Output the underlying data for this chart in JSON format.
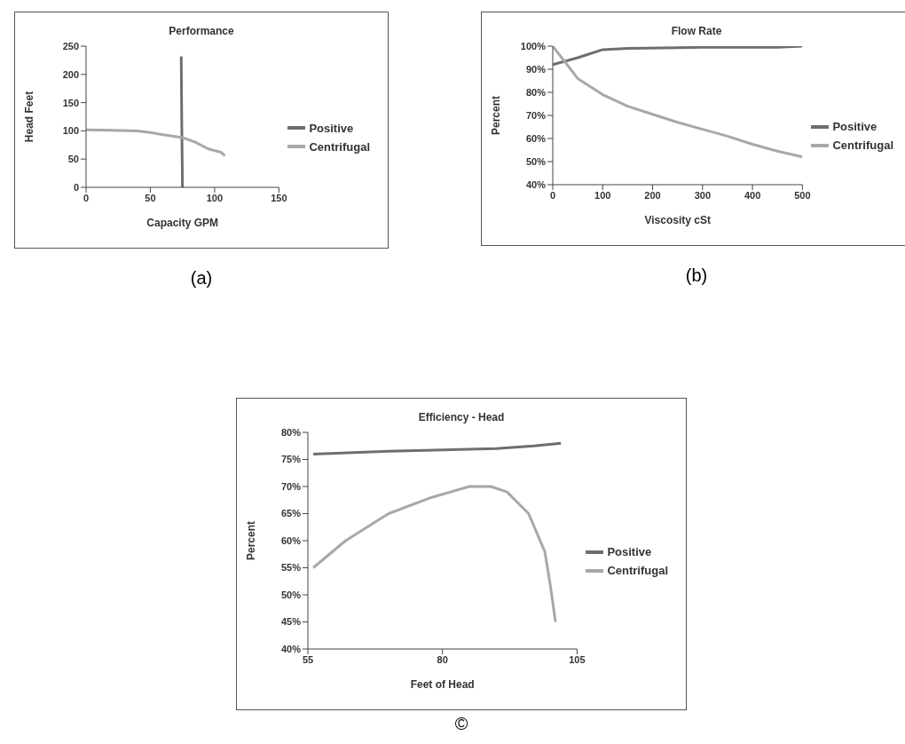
{
  "chart_data": [
    {
      "type": "line",
      "title": "Performance",
      "xlabel": "Capacity GPM",
      "ylabel": "Head Feet",
      "xlim": [
        0,
        150
      ],
      "xticks": [
        0,
        50,
        100,
        150
      ],
      "ylim": [
        0,
        250
      ],
      "yticks": [
        0,
        50,
        100,
        150,
        200,
        250
      ],
      "grid": false,
      "legend": "right",
      "marker": "none",
      "annotations": [
        "(a)"
      ],
      "series": [
        {
          "name": "Positive",
          "color": "#6e6e6e",
          "x": [
            74,
            74.5,
            75
          ],
          "values": [
            232,
            100,
            0
          ]
        },
        {
          "name": "Centrifugal",
          "color": "#a8a8a8",
          "x": [
            0,
            20,
            40,
            50,
            60,
            75,
            85,
            95,
            105,
            108
          ],
          "values": [
            102,
            101,
            100,
            97,
            93,
            88,
            80,
            68,
            62,
            56
          ]
        }
      ]
    },
    {
      "type": "line",
      "title": "Flow Rate",
      "xlabel": "Viscosity cSt",
      "ylabel": "Percent",
      "xlim": [
        0,
        500
      ],
      "xticks": [
        0,
        100,
        200,
        300,
        400,
        500
      ],
      "ylim": [
        40,
        100
      ],
      "yticks": [
        {
          "value": 40,
          "label": "40%"
        },
        {
          "value": 50,
          "label": "50%"
        },
        {
          "value": 60,
          "label": "60%"
        },
        {
          "value": 70,
          "label": "70%"
        },
        {
          "value": 80,
          "label": "80%"
        },
        {
          "value": 90,
          "label": "90%"
        },
        {
          "value": 100,
          "label": "100%"
        }
      ],
      "grid": false,
      "legend": "right",
      "marker": "none",
      "annotations": [
        "(b)"
      ],
      "series": [
        {
          "name": "Positive",
          "color": "#6e6e6e",
          "x": [
            0,
            50,
            100,
            150,
            300,
            450,
            500
          ],
          "values": [
            92,
            95,
            98.5,
            99,
            99.5,
            99.5,
            100
          ]
        },
        {
          "name": "Centrifugal",
          "color": "#a8a8a8",
          "x": [
            0,
            50,
            100,
            150,
            200,
            250,
            300,
            350,
            400,
            450,
            500
          ],
          "values": [
            100,
            86,
            79,
            74,
            70.5,
            67,
            64,
            61,
            57.5,
            54.5,
            52
          ]
        }
      ]
    },
    {
      "type": "line",
      "title": "Efficiency - Head",
      "xlabel": "Feet of Head",
      "ylabel": "Percent",
      "xlim": [
        55,
        105
      ],
      "xticks": [
        55,
        80,
        105
      ],
      "ylim": [
        40,
        80
      ],
      "yticks": [
        {
          "value": 40,
          "label": "40%"
        },
        {
          "value": 45,
          "label": "45%"
        },
        {
          "value": 50,
          "label": "50%"
        },
        {
          "value": 55,
          "label": "55%"
        },
        {
          "value": 60,
          "label": "60%"
        },
        {
          "value": 65,
          "label": "65%"
        },
        {
          "value": 70,
          "label": "70%"
        },
        {
          "value": 75,
          "label": "75%"
        },
        {
          "value": 80,
          "label": "80%"
        }
      ],
      "grid": false,
      "legend": "right",
      "marker": "none",
      "annotations": [
        "©"
      ],
      "series": [
        {
          "name": "Positive",
          "color": "#6e6e6e",
          "x": [
            56,
            70,
            90,
            97,
            102
          ],
          "values": [
            76,
            76.5,
            77,
            77.5,
            78
          ]
        },
        {
          "name": "Centrifugal",
          "color": "#a8a8a8",
          "x": [
            56,
            62,
            70,
            78,
            85,
            89,
            92,
            96,
            99,
            100,
            101
          ],
          "values": [
            55,
            60,
            65,
            68,
            70,
            70,
            69,
            65,
            58,
            52,
            45
          ]
        }
      ]
    }
  ]
}
